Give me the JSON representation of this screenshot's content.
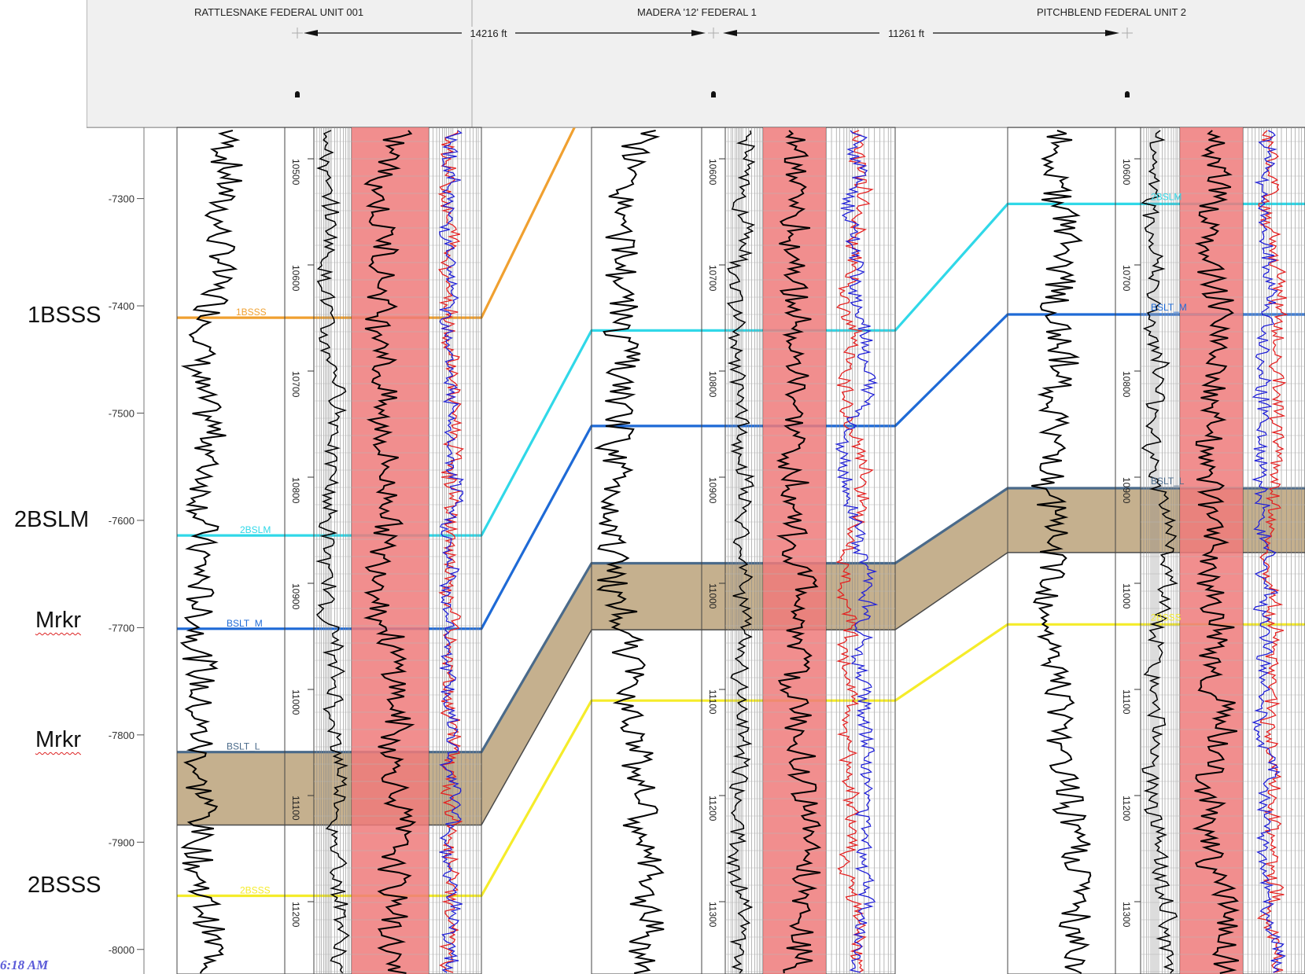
{
  "wells": [
    {
      "name": "RATTLESNAKE FEDERAL UNIT 001"
    },
    {
      "name": "MADERA '12' FEDERAL 1"
    },
    {
      "name": "PITCHBLEND FEDERAL UNIT 2"
    }
  ],
  "spacings": [
    "14216 ft",
    "11261 ft"
  ],
  "chart_data": {
    "type": "line",
    "title": "",
    "ylabel": "",
    "y_axis": {
      "ticks": [
        -7300,
        -7400,
        -7500,
        -7600,
        -7700,
        -7800,
        -7900,
        -8000
      ],
      "range": [
        -7240,
        -8020
      ]
    },
    "measured_depth_ticks": [
      [
        10500,
        10600,
        10700,
        10800,
        10900,
        11000,
        11100,
        11200
      ],
      [
        10600,
        10700,
        10800,
        10900,
        11000,
        11100,
        11200,
        11300
      ],
      [
        10600,
        10700,
        10800,
        10900,
        11000,
        11100,
        11200,
        11300
      ]
    ],
    "series": [
      {
        "name": "1BSSS",
        "color": "#f0a030",
        "values": [
          -7411,
          null,
          null
        ]
      },
      {
        "name": "2BSLM",
        "color": "#30d8e8",
        "values": [
          -7614,
          -7423,
          -7305
        ]
      },
      {
        "name": "BSLT_M",
        "color": "#1e6ad6",
        "values": [
          -7701,
          -7512,
          -7408
        ]
      },
      {
        "name": "BSLT_L",
        "color": "#4a6a8a",
        "values": [
          -7816,
          -7640,
          -7570
        ]
      },
      {
        "name": "2BSSS",
        "color": "#f5ec2a",
        "values": [
          -7950,
          -7768,
          -7697
        ]
      }
    ],
    "shaded_interval": {
      "color": "#bba27a",
      "top": [
        -7816,
        -7640,
        -7570
      ],
      "base": [
        -7884,
        -7702,
        -7630
      ]
    },
    "formation_labels": [
      "1BSSS",
      "2BSLM",
      "Mrkr",
      "Mrkr",
      "2BSSS"
    ],
    "pick_labels": [
      "1BSSS",
      "2BSLM",
      "BSLT_M",
      "BSLT_L",
      "2BSSS"
    ]
  },
  "timestamp": "6:18 AM"
}
